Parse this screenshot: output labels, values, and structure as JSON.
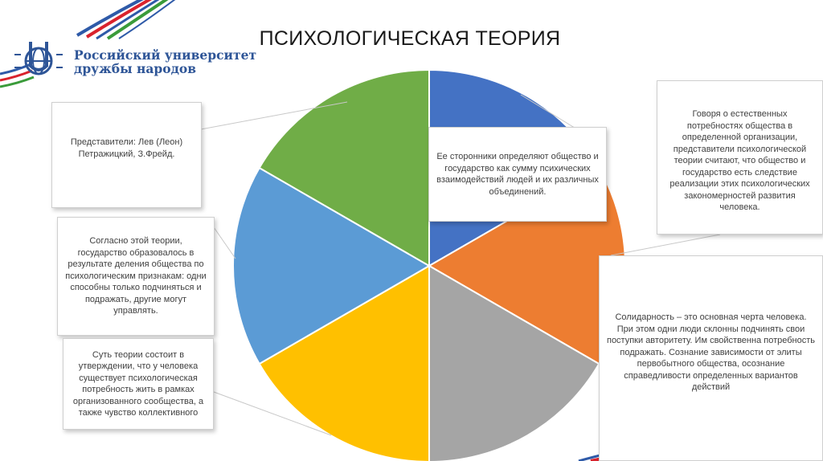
{
  "slide": {
    "title": "ПСИХОЛОГИЧЕСКАЯ ТЕОРИЯ",
    "logo": {
      "line1": "Российский университет",
      "line2": "дружбы народов",
      "color": "#2e5597"
    }
  },
  "pie": {
    "segments": [
      {
        "color": "#4472c4"
      },
      {
        "color": "#ed7d31"
      },
      {
        "color": "#a5a5a5"
      },
      {
        "color": "#ffc000"
      },
      {
        "color": "#5b9bd5"
      },
      {
        "color": "#70ad47"
      }
    ]
  },
  "callouts": {
    "representatives": "Представители: Лев (Леон) Петражицкий, З.Фрейд.",
    "supporters": "Ее сторонники определяют общество и государство как сумму психических взаимодействий людей и их различных объединений.",
    "natural_needs": "Говоря о естественных потребностях общества в определенной организации, представители психологической теории считают, что общество и государство есть следствие реализации этих психологических закономерностей развития человека.",
    "state_origin": "Согласно этой теории, государство образовалось в результате деления общества по психологическим признакам: одни способны только подчиняться и подражать, другие могут управлять.",
    "essence": "Суть теории состоит в утверждении, что у человека существует психологическая потребность жить в рамках организованного сообщества, а также чувство коллективного",
    "solidarity": "Солидарность – это основная черта человека. При этом одни люди склонны подчинять свои поступки авторитету. Им свойственна потребность подражать. Сознание зависимости от элиты первобытного общества, осознание справедливости определенных вариантов действий"
  }
}
